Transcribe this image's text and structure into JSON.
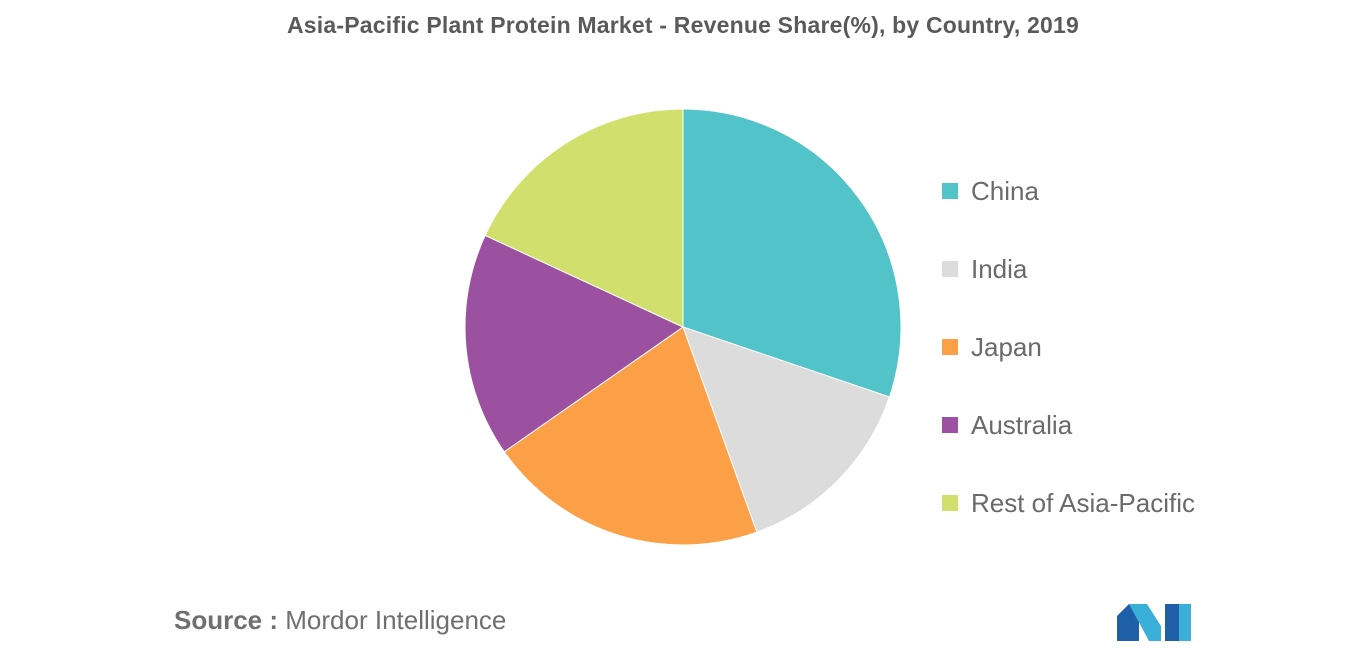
{
  "chart_data": {
    "type": "pie",
    "title": "Asia-Pacific Plant Protein Market - Revenue Share(%), by Country, 2019",
    "categories": [
      "China",
      "India",
      "Japan",
      "Australia",
      "Rest of Asia-Pacific"
    ],
    "values": [
      30.2,
      14.3,
      20.8,
      16.6,
      18.1
    ],
    "unit": "%",
    "colors": [
      "#52c3c9",
      "#dcdcdc",
      "#fca048",
      "#9c51a0",
      "#d1e06c"
    ],
    "start_angle_deg": 0,
    "direction": "clockwise",
    "legend_position": "right"
  },
  "source": {
    "prefix": "Source :",
    "text": "Mordor Intelligence"
  },
  "logo": {
    "name": "mordor-intelligence-logo",
    "colors": [
      "#1f5fa8",
      "#3ab0d8"
    ]
  }
}
